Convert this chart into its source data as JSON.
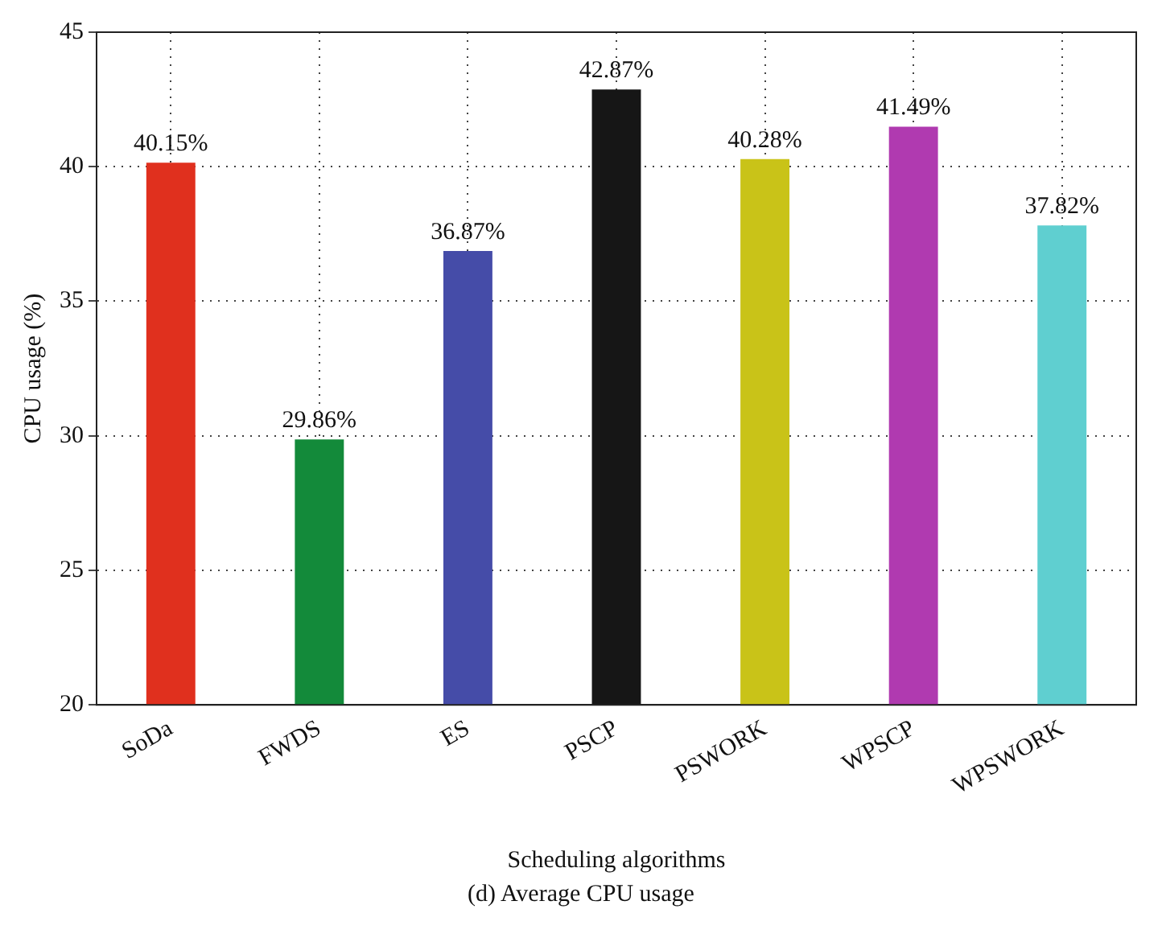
{
  "chart_data": {
    "type": "bar",
    "xlabel": "Scheduling algorithms",
    "ylabel": "CPU usage (%)",
    "categories": [
      "SoDa",
      "FWDS",
      "ES",
      "PSCP",
      "PSWORK",
      "WPSCP",
      "WPSWORK"
    ],
    "values": [
      40.15,
      29.86,
      36.87,
      42.87,
      40.28,
      41.49,
      37.82
    ],
    "value_labels": [
      "40.15%",
      "29.86%",
      "36.87%",
      "42.87%",
      "40.28%",
      "41.49%",
      "37.82%"
    ],
    "colors": [
      "#e0301e",
      "#138a3a",
      "#454ca8",
      "#161616",
      "#c9c318",
      "#b03ab0",
      "#5fcfd0"
    ],
    "ylim": [
      20,
      45
    ],
    "yticks": [
      20,
      25,
      30,
      35,
      40,
      45
    ],
    "grid": true,
    "legend": false,
    "annotations": [
      "(d) Average CPU usage"
    ]
  }
}
